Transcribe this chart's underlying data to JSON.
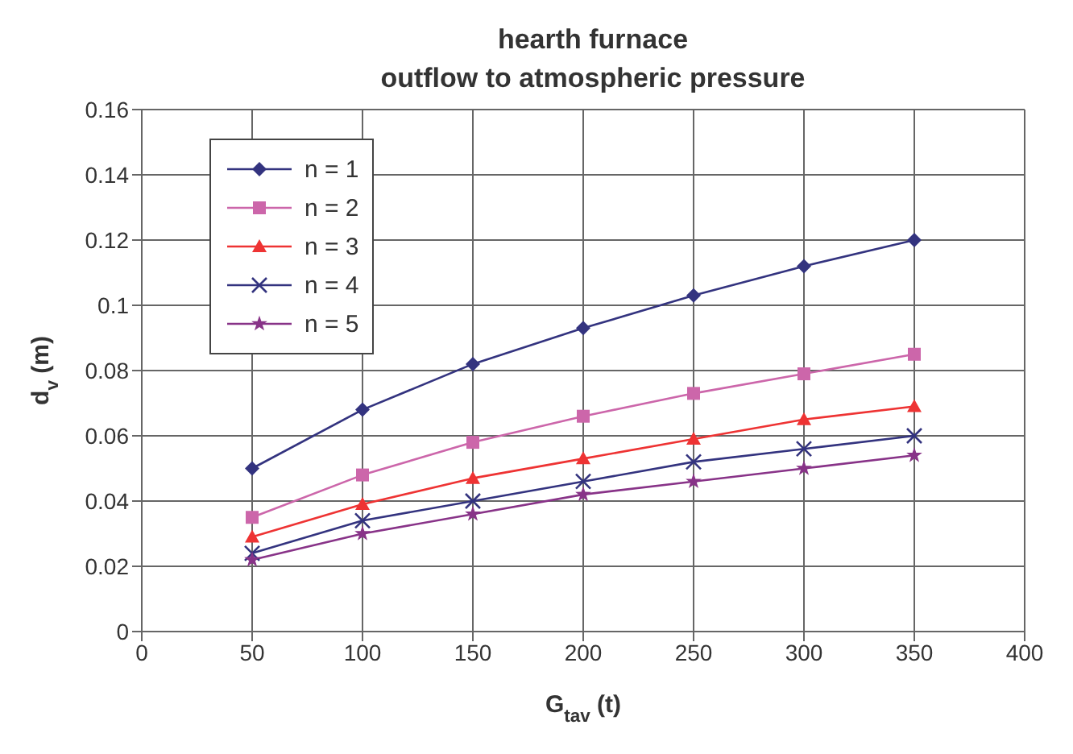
{
  "chart_data": {
    "type": "line",
    "title": "hearth furnace\noutflow to atmospheric pressure",
    "xlabel": "G$_{tav}$ (t)",
    "ylabel": "d$_{v}$ (m)",
    "x": [
      50,
      100,
      150,
      200,
      250,
      300,
      350
    ],
    "series": [
      {
        "name": "n = 1",
        "color": "#33337f",
        "marker": "diamond",
        "values": [
          0.05,
          0.068,
          0.082,
          0.093,
          0.103,
          0.112,
          0.12
        ]
      },
      {
        "name": "n = 2",
        "color": "#cc66aa",
        "marker": "square",
        "values": [
          0.035,
          0.048,
          0.058,
          0.066,
          0.073,
          0.079,
          0.085
        ]
      },
      {
        "name": "n = 3",
        "color": "#ee3333",
        "marker": "triangle",
        "values": [
          0.029,
          0.039,
          0.047,
          0.053,
          0.059,
          0.065,
          0.069
        ]
      },
      {
        "name": "n = 4",
        "color": "#33337f",
        "marker": "cross",
        "values": [
          0.024,
          0.034,
          0.04,
          0.046,
          0.052,
          0.056,
          0.06
        ]
      },
      {
        "name": "n = 5",
        "color": "#883388",
        "marker": "star",
        "values": [
          0.022,
          0.03,
          0.036,
          0.042,
          0.046,
          0.05,
          0.054
        ]
      }
    ],
    "xlim": [
      0,
      400
    ],
    "xticks": [
      0,
      50,
      100,
      150,
      200,
      250,
      300,
      350,
      400
    ],
    "ylim": [
      0,
      0.16
    ],
    "yticks": [
      0,
      0.02,
      0.04,
      0.06,
      0.08,
      0.1,
      0.12,
      0.14,
      0.16
    ],
    "grid": true,
    "legend": "top left",
    "line_style": "solid"
  }
}
